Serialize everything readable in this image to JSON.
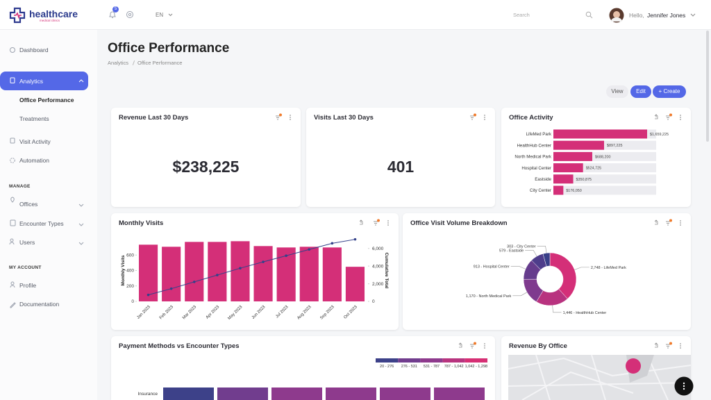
{
  "header": {
    "brand": "healthcare",
    "tagline": "medical clinics",
    "notifications": 5,
    "language": "EN",
    "search": "Search",
    "greeting": "Hello,",
    "user": "Jennifer Jones"
  },
  "sidebar": {
    "nav": [
      "Dashboard",
      "Analytics",
      "Office Performance",
      "Treatments",
      "Visit Activity",
      "Automation"
    ],
    "manage_title": "MANAGE",
    "manage": [
      "Offices",
      "Encounter Types",
      "Users"
    ],
    "account_title": "MY ACCOUNT",
    "account": [
      "Profile",
      "Documentation"
    ]
  },
  "page": {
    "title": "Office Performance",
    "breadcrumb": [
      "Analytics",
      "Office Performance"
    ],
    "actions": [
      "View",
      "Edit",
      "+ Create"
    ]
  },
  "kpis": [
    {
      "title": "Revenue Last 30 Days",
      "value": "$238,225"
    },
    {
      "title": "Visits Last 30 Days",
      "value": "401"
    }
  ],
  "map": {
    "title": "Revenue By Office"
  },
  "chart_data": [
    {
      "type": "bar",
      "horizontal": true,
      "title": "Office Activity",
      "color": "#d42f78",
      "categories": [
        "LifeMed Park",
        "HealthHub Center",
        "North Medical Park",
        "Hospital Center",
        "Eastside",
        "City Center"
      ],
      "values": [
        1659225,
        897225,
        688200,
        524725,
        350875,
        176050
      ],
      "value_labels": [
        "$1,659,225",
        "$897,225",
        "$688,200",
        "$524,725",
        "$350,875",
        "$176,050"
      ]
    },
    {
      "type": "combo",
      "title": "Monthly Visits",
      "ylabel": "Monthly Visits",
      "y2label": "Cumulative Total",
      "categories": [
        "Jan 2023",
        "Feb 2023",
        "Mar 2023",
        "Apr 2023",
        "May 2023",
        "Jun 2023",
        "Jul 2023",
        "Aug 2023",
        "Sep 2023",
        "Oct 2023"
      ],
      "series": [
        {
          "type": "bar",
          "color": "#d42f78",
          "values": [
            734,
            707,
            770,
            770,
            779,
            716,
            698,
            707,
            698,
            448
          ]
        },
        {
          "type": "line",
          "axis": "y2",
          "color": "#34428a",
          "values": [
            734,
            1441,
            2211,
            2981,
            3760,
            4476,
            5174,
            5881,
            6579,
            7027
          ]
        }
      ],
      "ylim": [
        0,
        800
      ],
      "yticks": [
        0,
        200,
        400,
        600
      ],
      "y2lim": [
        0,
        7000
      ],
      "y2ticks": [
        0,
        {
          "value": 2000,
          "label": "2,000"
        },
        {
          "value": 4000,
          "label": "4,000"
        },
        {
          "value": 6000,
          "label": "6,000"
        }
      ]
    },
    {
      "type": "donut",
      "title": "Office Visit Volume Breakdown",
      "labels": [
        "2,748 - LifeMed Park",
        "1,446 - HealthHub Center",
        "1,170 - North Medical Park",
        "913 - Hospital Center",
        "579 - Eastside",
        "303 - City Center"
      ],
      "values": [
        2748,
        1446,
        1170,
        913,
        579,
        303
      ],
      "colors": [
        "#d42f78",
        "#b8327f",
        "#7f3a8e",
        "#663c8d",
        "#4e3d8b",
        "#383f88"
      ]
    },
    {
      "type": "heatmap",
      "title": "Payment Methods vs Encounter Types",
      "rows": [
        "Insurance"
      ],
      "values": [
        [
          180,
          470,
          600,
          560,
          640,
          680
        ]
      ],
      "scale": [
        20,
        276,
        531,
        787,
        1042,
        1298
      ],
      "legend_labels": [
        "20 - 276",
        "276 - 531",
        "531 - 787",
        "787 - 1,042",
        "1,042 - 1,298"
      ],
      "colors": [
        "#3d4189",
        "#713d8e",
        "#8e3a8d",
        "#b8347f",
        "#d62f74"
      ]
    }
  ]
}
